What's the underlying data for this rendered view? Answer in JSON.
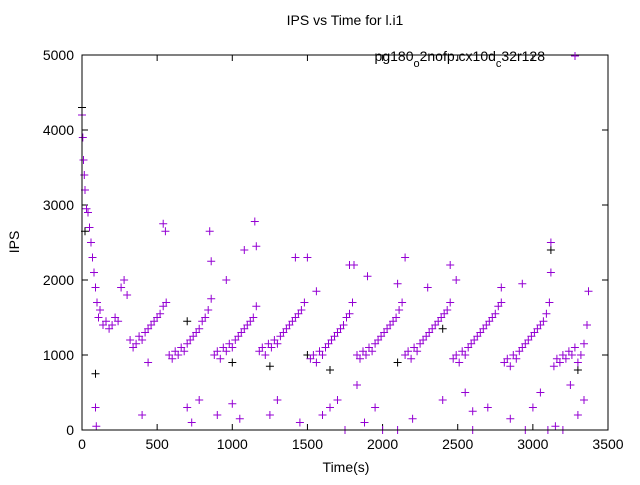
{
  "chart_data": {
    "type": "scatter",
    "title": "IPS vs Time for l.i1",
    "xlabel": "Time(s)",
    "ylabel": "IPS",
    "xlim": [
      0,
      3500
    ],
    "ylim": [
      0,
      5000
    ],
    "xticks": [
      0,
      500,
      1000,
      1500,
      2000,
      2500,
      3000,
      3500
    ],
    "yticks": [
      0,
      1000,
      2000,
      3000,
      4000,
      5000
    ],
    "grid": false,
    "legend_position": "top-right",
    "series": [
      {
        "name": "pg180_o2nofp.cx10d_c32r128",
        "color": "#9400d3",
        "marker": "plus",
        "points": [
          [
            0,
            4200
          ],
          [
            5,
            3900
          ],
          [
            10,
            3600
          ],
          [
            15,
            3400
          ],
          [
            20,
            3200
          ],
          [
            30,
            2950
          ],
          [
            40,
            2900
          ],
          [
            50,
            2700
          ],
          [
            60,
            2500
          ],
          [
            70,
            2300
          ],
          [
            80,
            2100
          ],
          [
            90,
            1900
          ],
          [
            100,
            1700
          ],
          [
            110,
            1500
          ],
          [
            120,
            1600
          ],
          [
            140,
            1400
          ],
          [
            160,
            1450
          ],
          [
            180,
            1350
          ],
          [
            200,
            1400
          ],
          [
            220,
            1500
          ],
          [
            240,
            1450
          ],
          [
            260,
            1900
          ],
          [
            280,
            2000
          ],
          [
            300,
            1800
          ],
          [
            320,
            1200
          ],
          [
            340,
            1100
          ],
          [
            360,
            1150
          ],
          [
            380,
            1250
          ],
          [
            400,
            1200
          ],
          [
            420,
            1300
          ],
          [
            440,
            1350
          ],
          [
            460,
            1400
          ],
          [
            480,
            1450
          ],
          [
            500,
            1500
          ],
          [
            520,
            1550
          ],
          [
            540,
            1650
          ],
          [
            560,
            1700
          ],
          [
            580,
            1000
          ],
          [
            600,
            950
          ],
          [
            620,
            1050
          ],
          [
            640,
            1000
          ],
          [
            660,
            1100
          ],
          [
            680,
            1050
          ],
          [
            700,
            1150
          ],
          [
            720,
            1200
          ],
          [
            740,
            1250
          ],
          [
            760,
            1300
          ],
          [
            780,
            1350
          ],
          [
            800,
            1450
          ],
          [
            820,
            1500
          ],
          [
            840,
            1600
          ],
          [
            860,
            1750
          ],
          [
            880,
            1000
          ],
          [
            900,
            1050
          ],
          [
            920,
            950
          ],
          [
            940,
            1100
          ],
          [
            960,
            1050
          ],
          [
            980,
            1150
          ],
          [
            1000,
            1100
          ],
          [
            1020,
            1200
          ],
          [
            1040,
            1250
          ],
          [
            1060,
            1300
          ],
          [
            1080,
            1350
          ],
          [
            1100,
            1400
          ],
          [
            1120,
            1450
          ],
          [
            1140,
            1500
          ],
          [
            1160,
            1650
          ],
          [
            1180,
            1050
          ],
          [
            1200,
            1100
          ],
          [
            1220,
            1000
          ],
          [
            1240,
            1150
          ],
          [
            1260,
            1100
          ],
          [
            1280,
            1200
          ],
          [
            1300,
            1150
          ],
          [
            1320,
            1250
          ],
          [
            1340,
            1300
          ],
          [
            1360,
            1350
          ],
          [
            1380,
            1400
          ],
          [
            1400,
            1450
          ],
          [
            1420,
            1500
          ],
          [
            1440,
            1550
          ],
          [
            1460,
            1600
          ],
          [
            1480,
            1700
          ],
          [
            1520,
            950
          ],
          [
            1540,
            1000
          ],
          [
            1560,
            900
          ],
          [
            1580,
            1050
          ],
          [
            1600,
            1000
          ],
          [
            1620,
            1100
          ],
          [
            1640,
            1150
          ],
          [
            1660,
            1200
          ],
          [
            1680,
            1250
          ],
          [
            1700,
            1300
          ],
          [
            1720,
            1350
          ],
          [
            1740,
            1400
          ],
          [
            1760,
            1500
          ],
          [
            1780,
            1550
          ],
          [
            1800,
            1700
          ],
          [
            1810,
            2200
          ],
          [
            1830,
            1000
          ],
          [
            1850,
            950
          ],
          [
            1870,
            1050
          ],
          [
            1890,
            1000
          ],
          [
            1910,
            1100
          ],
          [
            1930,
            1050
          ],
          [
            1950,
            1150
          ],
          [
            1970,
            1200
          ],
          [
            1990,
            1250
          ],
          [
            2010,
            1300
          ],
          [
            2030,
            1350
          ],
          [
            2050,
            1400
          ],
          [
            2070,
            1450
          ],
          [
            2090,
            1500
          ],
          [
            2110,
            1600
          ],
          [
            2130,
            1700
          ],
          [
            2150,
            1000
          ],
          [
            2170,
            1050
          ],
          [
            2190,
            950
          ],
          [
            2210,
            1100
          ],
          [
            2230,
            1050
          ],
          [
            2250,
            1150
          ],
          [
            2270,
            1200
          ],
          [
            2290,
            1250
          ],
          [
            2310,
            1300
          ],
          [
            2330,
            1350
          ],
          [
            2350,
            1400
          ],
          [
            2370,
            1450
          ],
          [
            2390,
            1500
          ],
          [
            2410,
            1550
          ],
          [
            2430,
            1600
          ],
          [
            2450,
            1700
          ],
          [
            2470,
            950
          ],
          [
            2490,
            1000
          ],
          [
            2510,
            900
          ],
          [
            2530,
            1050
          ],
          [
            2550,
            1000
          ],
          [
            2570,
            1100
          ],
          [
            2590,
            1150
          ],
          [
            2610,
            1200
          ],
          [
            2630,
            1250
          ],
          [
            2650,
            1300
          ],
          [
            2670,
            1350
          ],
          [
            2690,
            1400
          ],
          [
            2710,
            1450
          ],
          [
            2730,
            1500
          ],
          [
            2750,
            1550
          ],
          [
            2770,
            1650
          ],
          [
            2790,
            1700
          ],
          [
            2810,
            900
          ],
          [
            2830,
            950
          ],
          [
            2850,
            850
          ],
          [
            2870,
            1000
          ],
          [
            2890,
            950
          ],
          [
            2910,
            1050
          ],
          [
            2930,
            1100
          ],
          [
            2950,
            1150
          ],
          [
            2970,
            1200
          ],
          [
            2990,
            1250
          ],
          [
            3010,
            1300
          ],
          [
            3030,
            1350
          ],
          [
            3050,
            1400
          ],
          [
            3070,
            1450
          ],
          [
            3090,
            1550
          ],
          [
            3110,
            1700
          ],
          [
            3120,
            2100
          ],
          [
            3140,
            850
          ],
          [
            3160,
            950
          ],
          [
            3180,
            900
          ],
          [
            3200,
            1000
          ],
          [
            3220,
            950
          ],
          [
            3240,
            1050
          ],
          [
            3260,
            1000
          ],
          [
            3280,
            1100
          ],
          [
            3300,
            900
          ],
          [
            3320,
            1000
          ],
          [
            3340,
            1150
          ],
          [
            3360,
            1400
          ],
          [
            90,
            300
          ],
          [
            95,
            50
          ],
          [
            400,
            200
          ],
          [
            440,
            900
          ],
          [
            540,
            2750
          ],
          [
            555,
            2650
          ],
          [
            700,
            300
          ],
          [
            730,
            100
          ],
          [
            780,
            400
          ],
          [
            850,
            2650
          ],
          [
            860,
            2250
          ],
          [
            900,
            200
          ],
          [
            960,
            2000
          ],
          [
            1000,
            350
          ],
          [
            1050,
            150
          ],
          [
            1080,
            2400
          ],
          [
            1150,
            2780
          ],
          [
            1160,
            2450
          ],
          [
            1250,
            200
          ],
          [
            1300,
            400
          ],
          [
            1420,
            2300
          ],
          [
            1450,
            100
          ],
          [
            1500,
            2300
          ],
          [
            1560,
            1850
          ],
          [
            1600,
            200
          ],
          [
            1650,
            300
          ],
          [
            1700,
            400
          ],
          [
            1780,
            2200
          ],
          [
            1830,
            600
          ],
          [
            1880,
            100
          ],
          [
            1900,
            2050
          ],
          [
            1950,
            300
          ],
          [
            2100,
            1950
          ],
          [
            2150,
            2300
          ],
          [
            2200,
            150
          ],
          [
            2300,
            1900
          ],
          [
            2400,
            400
          ],
          [
            2450,
            2200
          ],
          [
            2490,
            2000
          ],
          [
            2550,
            500
          ],
          [
            2600,
            250
          ],
          [
            2700,
            300
          ],
          [
            2790,
            1900
          ],
          [
            2850,
            150
          ],
          [
            2930,
            1950
          ],
          [
            3000,
            300
          ],
          [
            3050,
            500
          ],
          [
            3120,
            2500
          ],
          [
            3150,
            50
          ],
          [
            3250,
            600
          ],
          [
            3300,
            200
          ],
          [
            3370,
            1850
          ],
          [
            3340,
            400
          ],
          [
            2000,
            0
          ],
          [
            2100,
            0
          ],
          [
            2600,
            0
          ],
          [
            2950,
            0
          ],
          [
            3200,
            0
          ],
          [
            3100,
            0
          ],
          [
            1750,
            0
          ]
        ]
      },
      {
        "name": "",
        "color": "#000000",
        "marker": "plus",
        "points": [
          [
            0,
            4300
          ],
          [
            20,
            2650
          ],
          [
            90,
            750
          ],
          [
            700,
            1450
          ],
          [
            1000,
            900
          ],
          [
            1250,
            850
          ],
          [
            1500,
            1000
          ],
          [
            1650,
            800
          ],
          [
            2100,
            900
          ],
          [
            2400,
            1350
          ],
          [
            3120,
            2400
          ],
          [
            3300,
            800
          ]
        ]
      }
    ]
  }
}
